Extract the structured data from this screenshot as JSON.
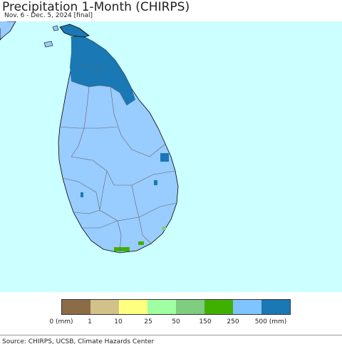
{
  "title": "Precipitation 1-Month (CHIRPS)",
  "subtitle": "Nov. 6 - Dec. 5, 2024 [final]",
  "legend": {
    "colors": [
      "#8b6c47",
      "#d2c28a",
      "#ffff80",
      "#a0ffa0",
      "#80cc80",
      "#40b000",
      "#80c4ff",
      "#1a78b4"
    ],
    "labels": [
      "0 (mm)",
      "1",
      "10",
      "25",
      "50",
      "150",
      "250",
      "500 (mm)"
    ]
  },
  "source": "Source: CHIRPS, UCSB, Climate Hazards Center",
  "colors": {
    "ocean": "#ccffff",
    "island": "#99ccff",
    "north_wet": "#1a78b4",
    "south_green": "#40b000",
    "boundary": "#666666"
  }
}
